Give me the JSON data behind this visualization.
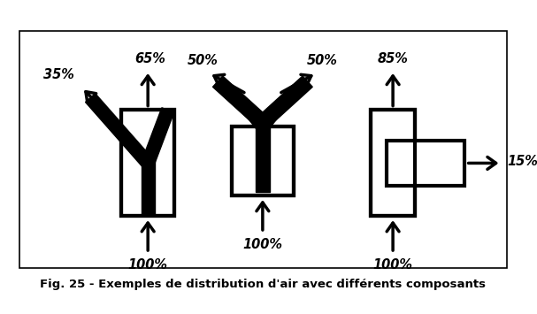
{
  "title": "Fig. 25 - Exemples de distribution d'air avec différents composants",
  "bg_color": "#ffffff",
  "line_color": "#000000",
  "lw": 2.5,
  "figsize": [
    6.07,
    3.55
  ],
  "dpi": 100,
  "labels": {
    "left_top": "65%",
    "left_diag": "35%",
    "left_bot": "100%",
    "mid_left": "50%",
    "mid_right": "50%",
    "mid_bot": "100%",
    "right_top": "85%",
    "right_right": "15%",
    "right_bot": "100%"
  }
}
